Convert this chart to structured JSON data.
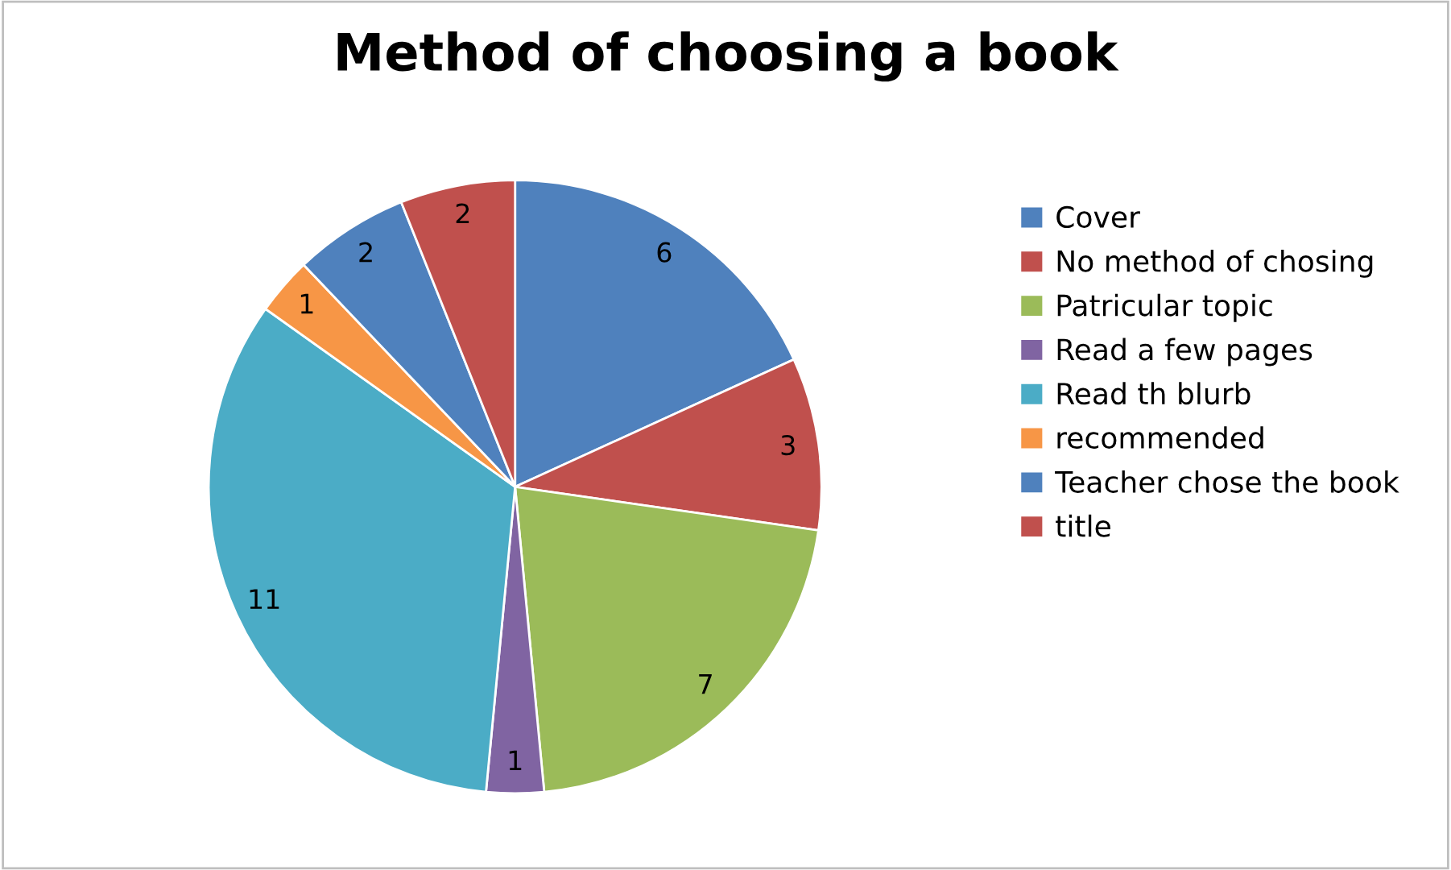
{
  "chart_data": {
    "type": "pie",
    "title": "Method of choosing a book",
    "categories": [
      "Cover",
      "No method of chosing",
      "Patricular topic",
      "Read a few pages",
      "Read th blurb",
      "recommended",
      "Teacher chose the book",
      "title"
    ],
    "values": [
      6,
      3,
      7,
      1,
      11,
      1,
      2,
      2
    ],
    "colors": [
      "#4f81bd",
      "#c0504d",
      "#9bbb59",
      "#8064a2",
      "#4bacc6",
      "#f79646",
      "#4f81bd",
      "#c0504d"
    ],
    "data_labels": true,
    "legend": "right"
  }
}
